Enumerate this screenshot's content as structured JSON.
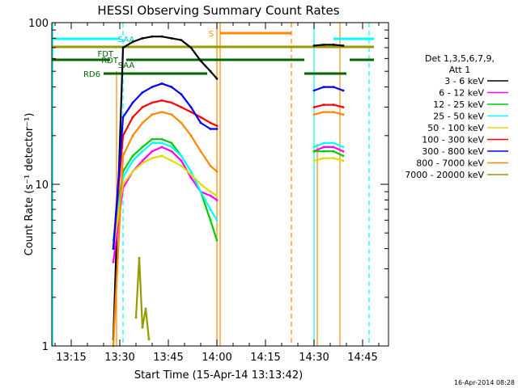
{
  "chart_data": {
    "type": "line",
    "title": "HESSI Observing Summary Count Rates",
    "xlabel": "Start Time (15-Apr-14 13:13:42)",
    "ylabel": "Count Rate (s⁻¹ detector⁻¹)",
    "ylog": true,
    "xlim": [
      "13:09",
      "14:53"
    ],
    "ylim": [
      1,
      100
    ],
    "x_ticks": [
      "13:15",
      "13:30",
      "13:45",
      "14:00",
      "14:15",
      "14:30",
      "14:45"
    ],
    "y_ticks": [
      "1",
      "10",
      "100"
    ],
    "legend": {
      "position": "right",
      "header": [
        "Det 1,3,5,6,7,9,",
        "Att 1"
      ]
    },
    "series": [
      {
        "name": "3 - 6 keV",
        "color": "#000000",
        "x": [
          "13:28",
          "13:31",
          "13:34",
          "13:37",
          "13:40",
          "13:43",
          "13:46",
          "13:49",
          "13:52",
          "13:55",
          "13:58",
          "14:00",
          "14:30",
          "14:33",
          "14:36",
          "14:39"
        ],
        "y": [
          1.1,
          70,
          76,
          80,
          82,
          82,
          80,
          78,
          70,
          58,
          50,
          45,
          72,
          73,
          73,
          72
        ]
      },
      {
        "name": "6 - 12 keV",
        "color": "#ff00ff",
        "x": [
          "13:28",
          "13:31",
          "13:34",
          "13:37",
          "13:40",
          "13:43",
          "13:46",
          "13:49",
          "13:52",
          "13:55",
          "13:58",
          "14:00",
          "14:30",
          "14:33",
          "14:36",
          "14:39"
        ],
        "y": [
          3.3,
          9.5,
          12,
          14,
          16,
          17,
          16,
          14,
          11,
          9,
          8.5,
          8,
          16,
          17,
          17,
          16
        ]
      },
      {
        "name": "12 - 25 keV",
        "color": "#00cc00",
        "x": [
          "13:28",
          "13:31",
          "13:34",
          "13:37",
          "13:40",
          "13:43",
          "13:46",
          "13:49",
          "13:52",
          "13:55",
          "13:58",
          "14:00",
          "14:30",
          "14:33",
          "14:36",
          "14:39"
        ],
        "y": [
          4.5,
          12,
          15,
          17,
          19,
          19,
          18,
          15,
          12,
          9,
          6,
          4.5,
          16,
          16,
          16,
          15
        ]
      },
      {
        "name": "25 - 50 keV",
        "color": "#00ffff",
        "x": [
          "13:28",
          "13:31",
          "13:34",
          "13:37",
          "13:40",
          "13:43",
          "13:46",
          "13:49",
          "13:52",
          "13:55",
          "13:58",
          "14:00",
          "14:30",
          "14:33",
          "14:36",
          "14:39"
        ],
        "y": [
          4.5,
          11,
          14,
          16,
          18,
          18,
          17,
          15,
          12,
          9,
          7,
          6,
          17,
          18,
          18,
          17
        ]
      },
      {
        "name": "50 - 100 keV",
        "color": "#dddd00",
        "x": [
          "13:28",
          "13:31",
          "13:34",
          "13:37",
          "13:40",
          "13:43",
          "13:46",
          "13:49",
          "13:52",
          "13:55",
          "13:58",
          "14:00",
          "14:30",
          "14:33",
          "14:36",
          "14:39"
        ],
        "y": [
          4.0,
          10,
          12,
          13.5,
          14.5,
          15,
          14,
          13,
          11.5,
          10,
          9,
          8.5,
          14,
          14.5,
          14.5,
          14
        ]
      },
      {
        "name": "100 - 300 keV",
        "color": "#ff0000",
        "x": [
          "13:28",
          "13:31",
          "13:34",
          "13:37",
          "13:40",
          "13:43",
          "13:46",
          "13:49",
          "13:52",
          "13:55",
          "13:58",
          "14:00",
          "14:30",
          "14:33",
          "14:36",
          "14:39"
        ],
        "y": [
          4.0,
          20,
          26,
          30,
          32,
          33,
          32,
          30,
          28,
          26,
          24,
          23,
          30,
          31,
          31,
          30
        ]
      },
      {
        "name": "300 - 800 keV",
        "color": "#0000ff",
        "x": [
          "13:28",
          "13:31",
          "13:34",
          "13:37",
          "13:40",
          "13:43",
          "13:46",
          "13:49",
          "13:52",
          "13:55",
          "13:58",
          "14:00",
          "14:30",
          "14:33",
          "14:36",
          "14:39"
        ],
        "y": [
          4.0,
          26,
          32,
          37,
          40,
          42,
          40,
          36,
          30,
          24,
          22,
          22,
          38,
          40,
          40,
          38
        ]
      },
      {
        "name": "800 - 7000 keV",
        "color": "#ff8800",
        "x": [
          "13:28",
          "13:31",
          "13:34",
          "13:37",
          "13:40",
          "13:43",
          "13:46",
          "13:49",
          "13:52",
          "13:55",
          "13:58",
          "14:00",
          "14:30",
          "14:33",
          "14:36",
          "14:39"
        ],
        "y": [
          1.0,
          15,
          20,
          24,
          27,
          28,
          27,
          24,
          20,
          16,
          13,
          12,
          27,
          28,
          28,
          27
        ]
      },
      {
        "name": "7000 - 20000 keV",
        "color": "#999900",
        "x": [
          "13:35",
          "13:36",
          "13:37",
          "13:38",
          "13:39"
        ],
        "y": [
          1.5,
          3.5,
          1.3,
          1.7,
          1.1
        ]
      }
    ],
    "flags": {
      "labels": [
        "FDT",
        "RD6",
        "RDT",
        "SAA",
        "SAA",
        "S"
      ]
    },
    "footer_timestamp": "16-Apr-2014 08:28"
  }
}
